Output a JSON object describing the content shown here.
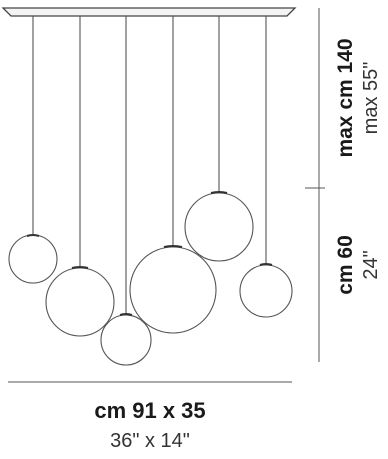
{
  "dimensions": {
    "height_max_cm": "max cm 140",
    "height_max_in": "max 55\"",
    "globe_drop_cm": "cm 60",
    "globe_drop_in": "24\"",
    "base_cm": "cm 91 x 35",
    "base_in": "36\" x 14\""
  },
  "colors": {
    "line": "#555555",
    "canopy": "#444444",
    "text_bold": "#1a1a1a",
    "text_light": "#333333"
  },
  "fixture": {
    "globe_count": 6,
    "globe_description": "pendant glass globes hanging from a rectangular canopy"
  }
}
